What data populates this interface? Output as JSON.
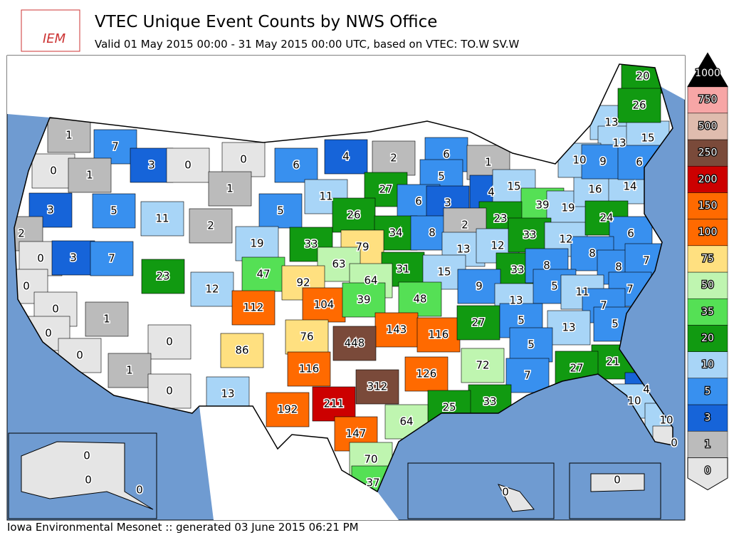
{
  "header": {
    "logo": "IEM",
    "title": "VTEC Unique Event Counts by NWS Office",
    "subtitle": "Valid 01 May 2015 00:00 - 31 May 2015 00:00 UTC, based on VTEC: TO.W SV.W"
  },
  "footer": "Iowa Environmental Mesonet :: generated 03 June 2015 06:21 PM",
  "legend": {
    "levels": [
      0,
      1,
      3,
      5,
      10,
      20,
      35,
      50,
      75,
      100,
      150,
      200,
      250,
      500,
      750,
      1000
    ],
    "colors": [
      "#e5e5e5",
      "#bbbbbb",
      "#1664d9",
      "#3890ef",
      "#a8d5f7",
      "#119a11",
      "#55e055",
      "#bff5b0",
      "#ffe080",
      "#ff6a00",
      "#ff6a00",
      "#cc0000",
      "#7a4a3a",
      "#dfbcae",
      "#f7a6a6",
      "#000000"
    ]
  },
  "office_counts": [
    1,
    7,
    3,
    0,
    0,
    0,
    1,
    1,
    6,
    4,
    2,
    6,
    1,
    5,
    27,
    11,
    5,
    2,
    3,
    5,
    11,
    2,
    0,
    3,
    7,
    26,
    6,
    3,
    4,
    15,
    39,
    19,
    23,
    34,
    8,
    2,
    13,
    12,
    33,
    12,
    16,
    14,
    24,
    6,
    33,
    79,
    19,
    63,
    31,
    15,
    33,
    8,
    8,
    8,
    7,
    23,
    47,
    92,
    64,
    12,
    9,
    13,
    5,
    11,
    7,
    7,
    5,
    0,
    0,
    0,
    1,
    112,
    104,
    39,
    48,
    143,
    116,
    27,
    5,
    13,
    0,
    76,
    448,
    86,
    5,
    72,
    21,
    27,
    0,
    1,
    116,
    126,
    7,
    312,
    0,
    13,
    4,
    33,
    25,
    211,
    192,
    10,
    10,
    64,
    147,
    0,
    70,
    37,
    0,
    0,
    0,
    0,
    0,
    13,
    13,
    15,
    10,
    9,
    6,
    20,
    26
  ]
}
